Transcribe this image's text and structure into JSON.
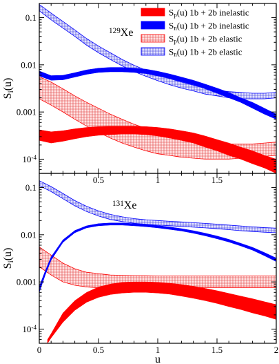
{
  "chart_data": [
    {
      "type": "line",
      "isotope": {
        "mass": "129",
        "element": "Xe"
      },
      "xlabel": "",
      "ylabel": {
        "base": "S",
        "sub": "i",
        "tail": "(u)"
      },
      "xlim": [
        0,
        2
      ],
      "ylim": [
        5e-05,
        0.2
      ],
      "yscale": "log",
      "xticks": [
        0.5,
        1,
        1.5
      ],
      "xticklabels": [
        "0.5",
        "1",
        "1.5"
      ],
      "yticks": [
        0.1,
        0.01,
        0.001,
        0.0001
      ],
      "yticklabels": [
        "0.1",
        "0.01",
        "0.001",
        "10-4"
      ],
      "legend": {
        "location": "top-right"
      },
      "series": [
        {
          "name": "S_p(u) 1b + 2b inelastic",
          "style": "solid-band",
          "color": "#ff0000",
          "x": [
            0,
            0.1,
            0.2,
            0.3,
            0.4,
            0.5,
            0.6,
            0.7,
            0.8,
            0.9,
            1.0,
            1.1,
            1.2,
            1.3,
            1.4,
            1.5,
            1.6,
            1.7,
            1.8,
            1.9,
            2.0
          ],
          "lower": [
            0.00025,
            0.00022,
            0.00024,
            0.00027,
            0.0003,
            0.00032,
            0.00033,
            0.00034,
            0.00034,
            0.00033,
            0.00031,
            0.00028,
            0.00025,
            0.00022,
            0.00018,
            0.00015,
            0.00012,
            0.0001,
            8e-05,
            6.5e-05,
            5e-05
          ],
          "upper": [
            0.00042,
            0.00038,
            0.0004,
            0.00044,
            0.00047,
            0.00049,
            0.0005,
            0.0005,
            0.0005,
            0.00049,
            0.00047,
            0.00044,
            0.0004,
            0.00036,
            0.00031,
            0.00026,
            0.00022,
            0.00018,
            0.00015,
            0.00012,
            0.0001
          ]
        },
        {
          "name": "S_n(u) 1b + 2b inelastic",
          "style": "solid-band",
          "color": "#0000ff",
          "x": [
            0,
            0.1,
            0.2,
            0.3,
            0.4,
            0.5,
            0.6,
            0.7,
            0.8,
            0.9,
            1.0,
            1.1,
            1.2,
            1.3,
            1.4,
            1.5,
            1.6,
            1.7,
            1.8,
            1.9,
            2.0
          ],
          "lower": [
            0.0058,
            0.0047,
            0.0048,
            0.0055,
            0.0063,
            0.0069,
            0.0071,
            0.0071,
            0.0069,
            0.0065,
            0.0058,
            0.0051,
            0.0044,
            0.0038,
            0.0031,
            0.0025,
            0.002,
            0.0016,
            0.0012,
            0.0009,
            0.0007
          ],
          "upper": [
            0.0074,
            0.0059,
            0.006,
            0.0068,
            0.0078,
            0.0085,
            0.0088,
            0.0088,
            0.0085,
            0.0081,
            0.0073,
            0.0064,
            0.0055,
            0.0047,
            0.0039,
            0.0032,
            0.0026,
            0.002,
            0.0016,
            0.0012,
            0.0009
          ]
        },
        {
          "name": "S_p(u) 1b + 2b elastic",
          "style": "hatched-band",
          "color": "#ff0000",
          "x": [
            0,
            0.1,
            0.2,
            0.3,
            0.4,
            0.5,
            0.6,
            0.7,
            0.8,
            0.9,
            1.0,
            1.1,
            1.2,
            1.3,
            1.4,
            1.5,
            1.6,
            1.7,
            1.8,
            1.9,
            2.0
          ],
          "lower": [
            0.0019,
            0.0014,
            0.001,
            0.0007,
            0.0005,
            0.00037,
            0.00028,
            0.00022,
            0.00018,
            0.00015,
            0.00013,
            0.00012,
            0.00011,
            0.000105,
            0.0001,
            0.0001,
            0.0001,
            0.000105,
            0.00011,
            0.000115,
            0.00012
          ],
          "upper": [
            0.0056,
            0.0043,
            0.0031,
            0.0022,
            0.0016,
            0.0012,
            0.0009,
            0.0007,
            0.00055,
            0.00045,
            0.00038,
            0.00032,
            0.00028,
            0.00025,
            0.00023,
            0.00022,
            0.00021,
            0.00021,
            0.00021,
            0.00022,
            0.00023
          ]
        },
        {
          "name": "S_n(u) 1b + 2b elastic",
          "style": "hatched-band",
          "color": "#0000ff",
          "x": [
            0,
            0.1,
            0.2,
            0.3,
            0.4,
            0.5,
            0.6,
            0.7,
            0.8,
            0.9,
            1.0,
            1.1,
            1.2,
            1.3,
            1.4,
            1.5,
            1.6,
            1.7,
            1.8,
            1.9,
            2.0
          ],
          "lower": [
            0.14,
            0.09,
            0.06,
            0.04,
            0.026,
            0.018,
            0.013,
            0.0095,
            0.0072,
            0.0057,
            0.0046,
            0.0038,
            0.0032,
            0.0028,
            0.0024,
            0.0022,
            0.002,
            0.0019,
            0.0019,
            0.0019,
            0.002
          ],
          "upper": [
            0.19,
            0.125,
            0.083,
            0.055,
            0.036,
            0.025,
            0.018,
            0.013,
            0.0098,
            0.0077,
            0.0062,
            0.0051,
            0.0043,
            0.0037,
            0.0032,
            0.0029,
            0.0027,
            0.0026,
            0.0025,
            0.0025,
            0.0026
          ]
        }
      ]
    },
    {
      "type": "line",
      "isotope": {
        "mass": "131",
        "element": "Xe"
      },
      "xlabel": "u",
      "ylabel": {
        "base": "S",
        "sub": "i",
        "tail": "(u)"
      },
      "xlim": [
        0,
        2
      ],
      "ylim": [
        5e-05,
        0.2
      ],
      "yscale": "log",
      "xticks": [
        0,
        0.5,
        1,
        1.5,
        2
      ],
      "xticklabels": [
        "0",
        "0.5",
        "1",
        "1.5",
        "2"
      ],
      "yticks": [
        0.1,
        0.01,
        0.001,
        0.0001
      ],
      "yticklabels": [
        "0.1",
        "0.01",
        "0.001",
        "10-4"
      ],
      "series": [
        {
          "name": "S_p(u) 1b + 2b inelastic",
          "style": "solid-band",
          "color": "#ff0000",
          "x": [
            0.07,
            0.1,
            0.2,
            0.3,
            0.4,
            0.5,
            0.6,
            0.7,
            0.8,
            0.9,
            1.0,
            1.1,
            1.2,
            1.3,
            1.4,
            1.5,
            1.6,
            1.7,
            1.8,
            1.9,
            2.0
          ],
          "lower": [
            5e-05,
            6.5e-05,
            0.00014,
            0.00025,
            0.00037,
            0.00047,
            0.00054,
            0.00058,
            0.0006,
            0.0006,
            0.00058,
            0.00055,
            0.0005,
            0.00045,
            0.0004,
            0.00035,
            0.0003,
            0.00026,
            0.00022,
            0.00019,
            0.00016
          ],
          "upper": [
            6e-05,
            8e-05,
            0.00022,
            0.0004,
            0.0006,
            0.00078,
            0.0009,
            0.00098,
            0.001,
            0.001,
            0.00098,
            0.00094,
            0.00088,
            0.00081,
            0.00073,
            0.00065,
            0.00057,
            0.0005,
            0.00044,
            0.00038,
            0.00033
          ]
        },
        {
          "name": "S_n(u) 1b + 2b inelastic",
          "style": "solid-band",
          "color": "#0000ff",
          "x": [
            0,
            0.05,
            0.1,
            0.2,
            0.3,
            0.4,
            0.5,
            0.6,
            0.7,
            0.8,
            0.9,
            1.0,
            1.1,
            1.2,
            1.3,
            1.4,
            1.5,
            1.6,
            1.7,
            1.8,
            1.9,
            2.0
          ],
          "lower": [
            0.0006,
            0.0014,
            0.0029,
            0.0069,
            0.011,
            0.014,
            0.0155,
            0.016,
            0.016,
            0.0155,
            0.0148,
            0.014,
            0.013,
            0.012,
            0.0108,
            0.0095,
            0.0082,
            0.007,
            0.0058,
            0.0047,
            0.0036,
            0.0027
          ],
          "upper": [
            0.0008,
            0.0017,
            0.0034,
            0.0078,
            0.0123,
            0.0155,
            0.0172,
            0.0178,
            0.0178,
            0.0172,
            0.0165,
            0.0157,
            0.0146,
            0.0135,
            0.0122,
            0.0108,
            0.0094,
            0.008,
            0.0066,
            0.0054,
            0.0042,
            0.0032
          ]
        },
        {
          "name": "S_p(u) 1b + 2b elastic",
          "style": "hatched-band",
          "color": "#ff0000",
          "x": [
            0,
            0.1,
            0.2,
            0.3,
            0.4,
            0.5,
            0.6,
            0.7,
            0.8,
            0.9,
            1.0,
            1.1,
            1.2,
            1.3,
            1.4,
            1.5,
            1.6,
            1.7,
            1.8,
            1.9,
            2.0
          ],
          "lower": [
            0.0021,
            0.0014,
            0.001,
            0.00085,
            0.00078,
            0.00075,
            0.00074,
            0.00074,
            0.00075,
            0.00075,
            0.00075,
            0.00076,
            0.00076,
            0.00076,
            0.00076,
            0.00076,
            0.00076,
            0.00076,
            0.00076,
            0.00076,
            0.00076
          ],
          "upper": [
            0.0055,
            0.0037,
            0.0025,
            0.0019,
            0.0016,
            0.0015,
            0.0014,
            0.00138,
            0.00136,
            0.00135,
            0.00134,
            0.00134,
            0.00134,
            0.00134,
            0.00134,
            0.00134,
            0.00134,
            0.00134,
            0.00134,
            0.00134,
            0.00134
          ]
        },
        {
          "name": "S_n(u) 1b + 2b elastic",
          "style": "hatched-band",
          "color": "#0000ff",
          "x": [
            0,
            0.1,
            0.2,
            0.3,
            0.4,
            0.5,
            0.6,
            0.7,
            0.8,
            0.9,
            1.0,
            1.1,
            1.2,
            1.3,
            1.4,
            1.5,
            1.6,
            1.7,
            1.8,
            1.9,
            2.0
          ],
          "lower": [
            0.11,
            0.082,
            0.058,
            0.041,
            0.031,
            0.025,
            0.021,
            0.019,
            0.0175,
            0.0167,
            0.016,
            0.0155,
            0.015,
            0.0145,
            0.014,
            0.0134,
            0.0128,
            0.0122,
            0.0117,
            0.0113,
            0.011
          ],
          "upper": [
            0.14,
            0.105,
            0.075,
            0.053,
            0.04,
            0.032,
            0.027,
            0.024,
            0.022,
            0.0208,
            0.02,
            0.0193,
            0.0187,
            0.018,
            0.0174,
            0.0168,
            0.016,
            0.0153,
            0.0147,
            0.0142,
            0.0138
          ]
        }
      ]
    }
  ]
}
